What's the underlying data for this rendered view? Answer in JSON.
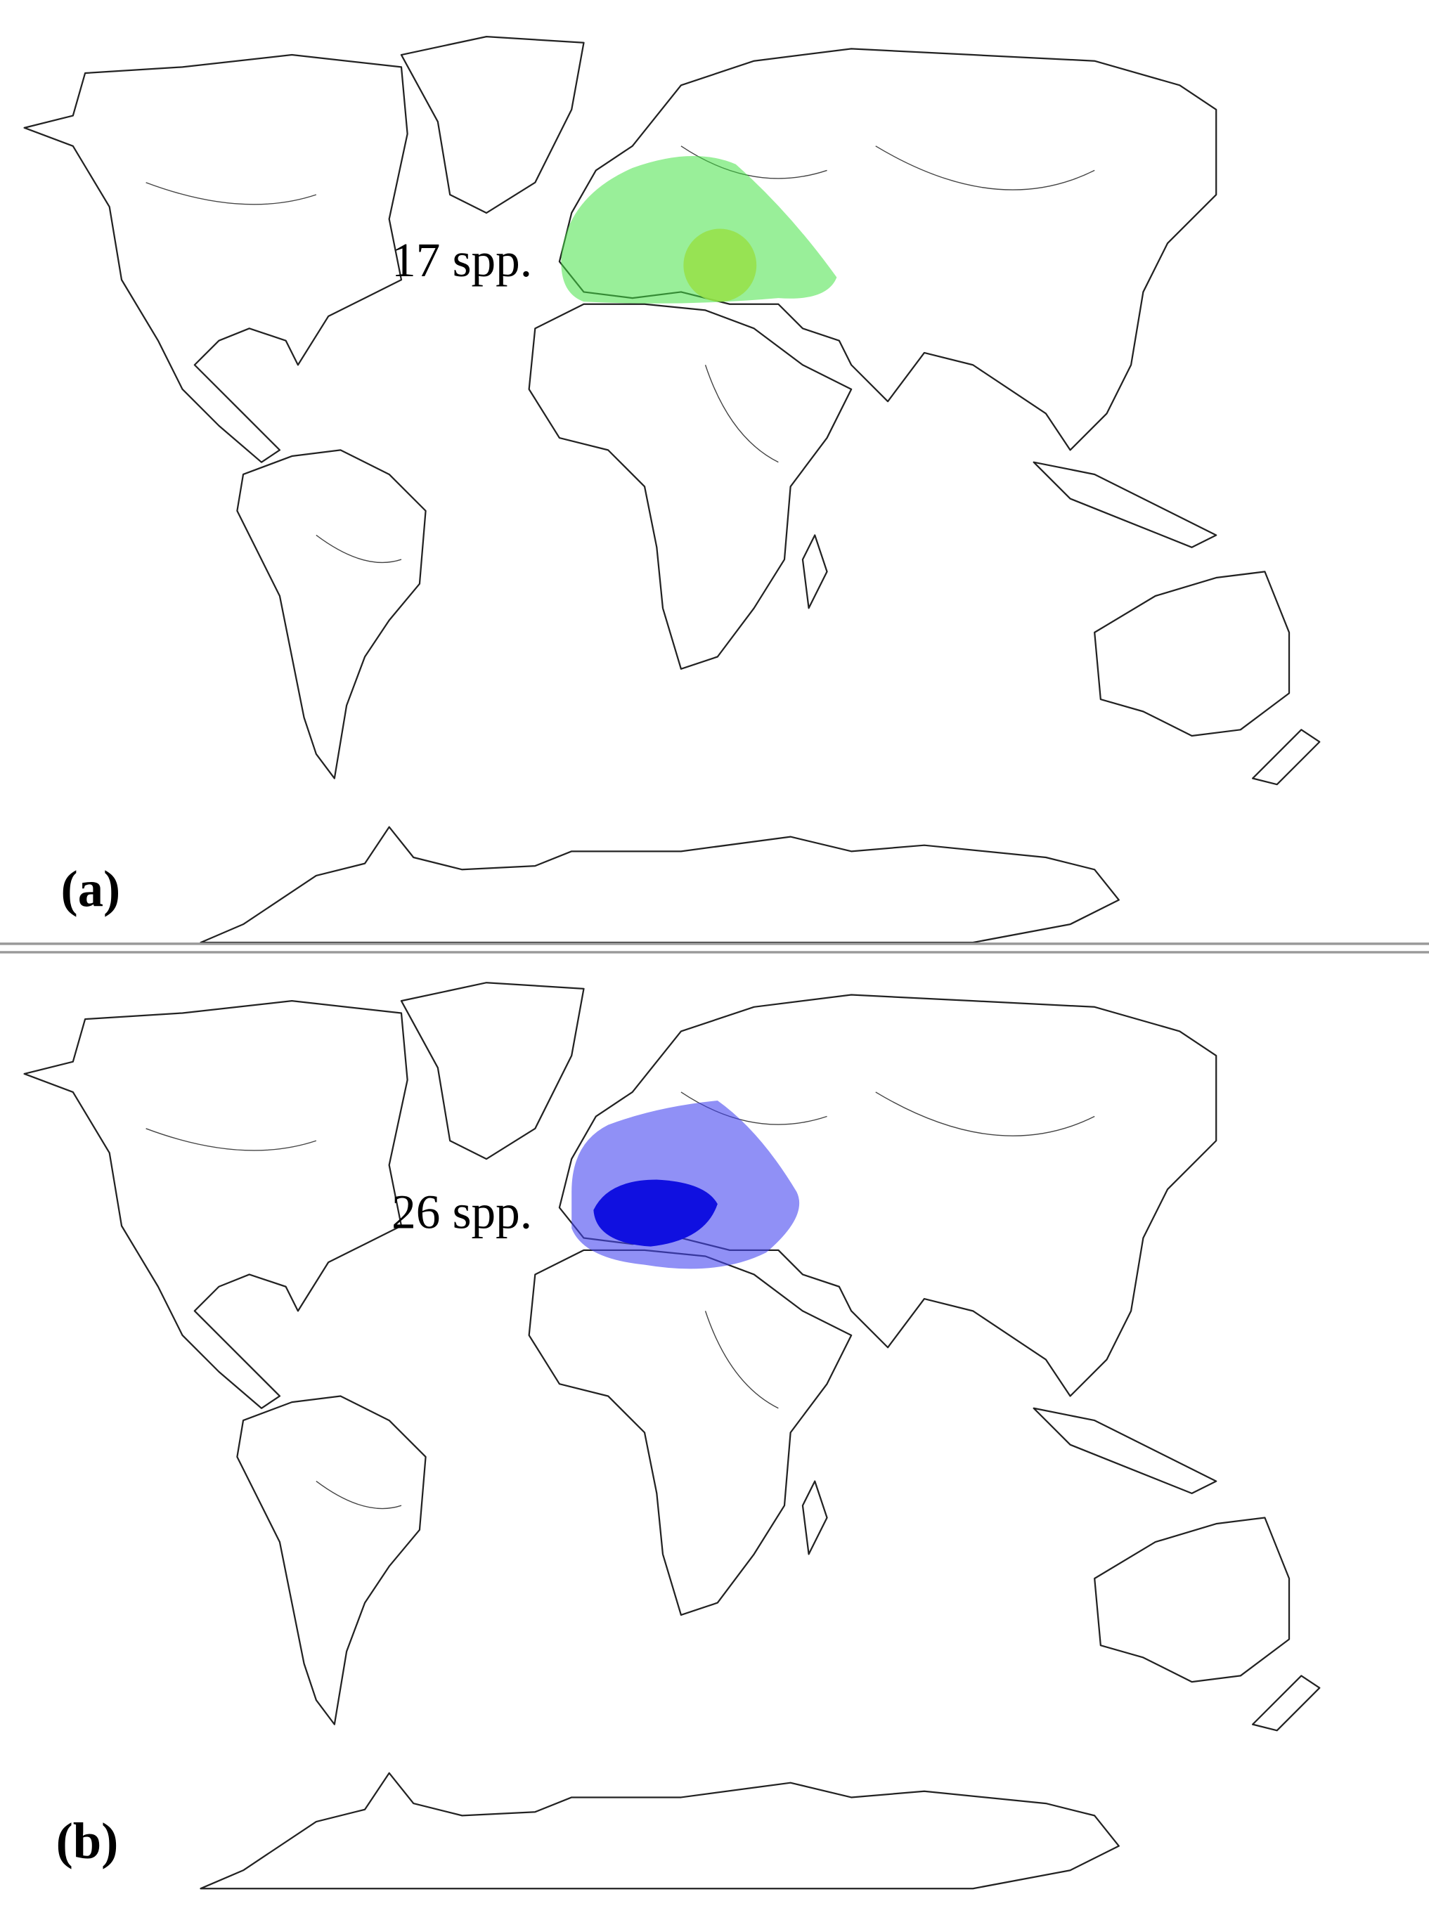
{
  "panels": [
    {
      "label": "(a)",
      "annotation": "17 spp."
    },
    {
      "label": "(b)",
      "annotation": "26 spp."
    }
  ]
}
